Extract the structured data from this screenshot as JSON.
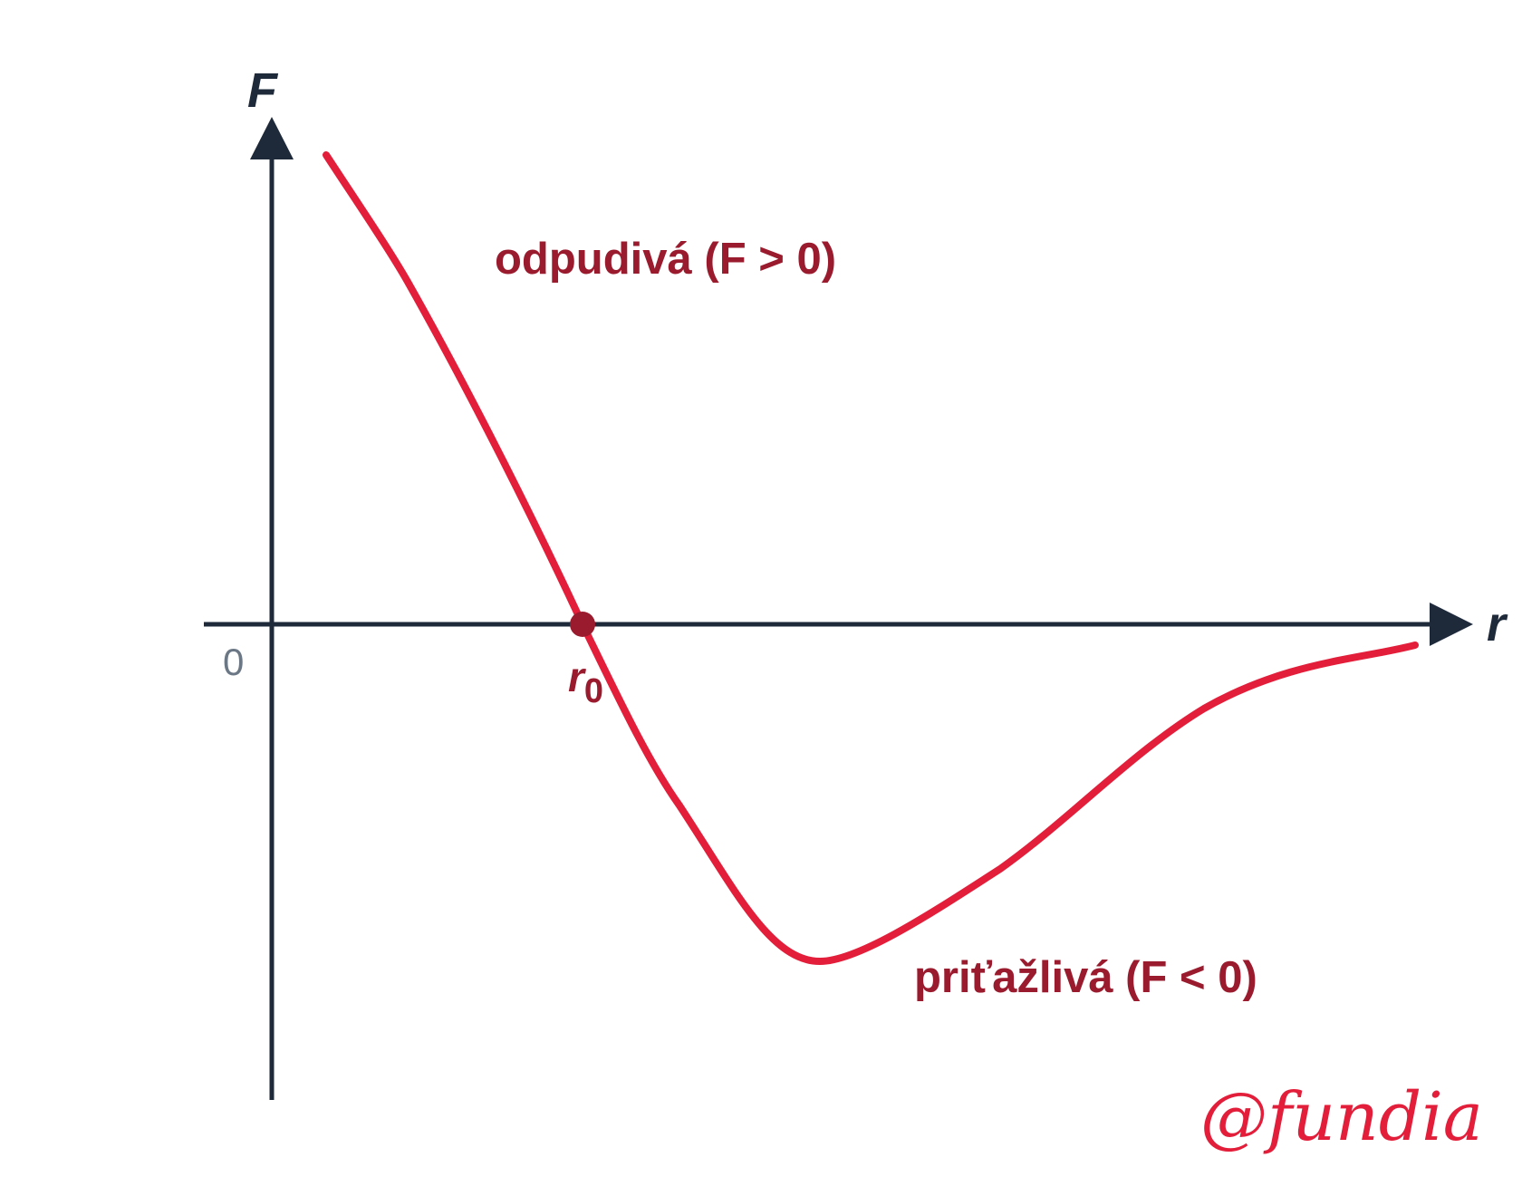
{
  "diagram": {
    "y_axis_label": "F",
    "x_axis_label": "r",
    "origin_label": "0",
    "equilibrium_label": {
      "symbol": "r",
      "subscript": "0"
    },
    "repulsive_label": "odpudivá (F > 0)",
    "attractive_label": "priťažlivá (F < 0)",
    "watermark": "@fundia"
  }
}
